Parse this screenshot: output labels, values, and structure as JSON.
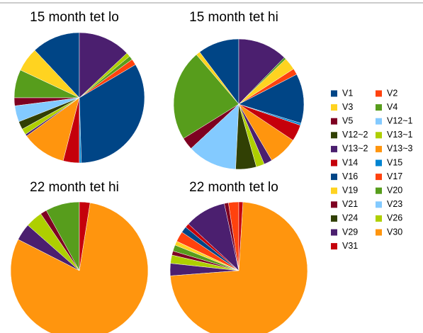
{
  "legend": {
    "categories": [
      "V1",
      "V2",
      "V3",
      "V4",
      "V5",
      "V12~1",
      "V12~2",
      "V13~1",
      "V13~2",
      "V13~3",
      "V14",
      "V15",
      "V16",
      "V17",
      "V19",
      "V20",
      "V21",
      "V23",
      "V24",
      "V26",
      "V29",
      "V30",
      "V31"
    ],
    "colors": [
      "#004586",
      "#ff420e",
      "#ffd320",
      "#579d1c",
      "#7e0021",
      "#83caff",
      "#314004",
      "#aecf00",
      "#4b1f6f",
      "#ff950e",
      "#c5000b",
      "#0084d1",
      "#004586",
      "#ff420e",
      "#ffd320",
      "#579d1c",
      "#7e0021",
      "#83caff",
      "#314004",
      "#aecf00",
      "#4b1f6f",
      "#ff950e",
      "#c5000b"
    ]
  },
  "chart_data": [
    {
      "type": "pie",
      "title": "15 month tet lo",
      "values": [
        12,
        0,
        6,
        7,
        2,
        4,
        2,
        1.5,
        0.5,
        11,
        4,
        0.5,
        33,
        1.5,
        0,
        1,
        0,
        0,
        0,
        1,
        13,
        0,
        0
      ]
    },
    {
      "type": "pie",
      "title": "15 month tet hi",
      "values": [
        10,
        0,
        1,
        22,
        3,
        12,
        5,
        2,
        2,
        7,
        4,
        0.5,
        12,
        1.5,
        3,
        0.5,
        0,
        0,
        0,
        0,
        12,
        0,
        0
      ]
    },
    {
      "type": "pie",
      "title": "22 month tet hi",
      "values": [
        0,
        0,
        0,
        0,
        0,
        0,
        0,
        0,
        0,
        0,
        0,
        0,
        0,
        0,
        0,
        8,
        1.5,
        0,
        0,
        4,
        4,
        80,
        2.5
      ]
    },
    {
      "type": "pie",
      "title": "22 month tet lo",
      "values": [
        0,
        2.5,
        0,
        0,
        1,
        0,
        0,
        0,
        10,
        0,
        1,
        0,
        1.5,
        2.5,
        1,
        1.5,
        1,
        0,
        0,
        2,
        3,
        75,
        1
      ]
    }
  ]
}
